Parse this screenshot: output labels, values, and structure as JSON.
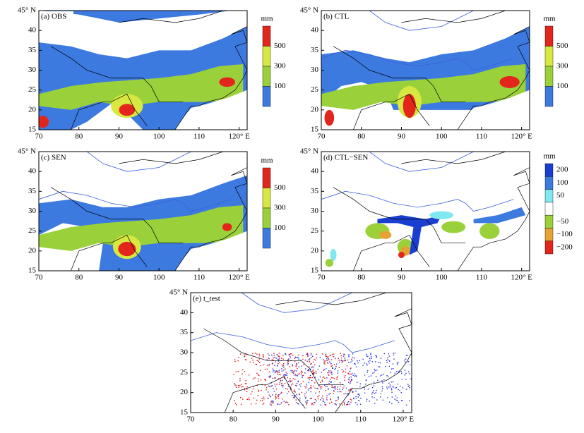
{
  "axes": {
    "xlim": [
      70,
      122
    ],
    "ylim": [
      15,
      45
    ],
    "xticks": [
      70,
      80,
      90,
      100,
      110,
      {
        "value": 120,
        "label": "120° E"
      }
    ],
    "yticks": [
      15,
      20,
      25,
      30,
      35,
      40,
      {
        "value": 45,
        "label": "45° N"
      }
    ]
  },
  "panels": [
    {
      "label": "(a) OBS",
      "colorbar": {
        "unit": "mm",
        "ticks": [
          100,
          300,
          500
        ]
      }
    },
    {
      "label": "(b) CTL",
      "colorbar": {
        "unit": "mm",
        "ticks": [
          100,
          300,
          500
        ]
      }
    },
    {
      "label": "(c) SEN",
      "colorbar": {
        "unit": "mm",
        "ticks": [
          100,
          300,
          500
        ]
      }
    },
    {
      "label": "(d) CTL−SEN",
      "colorbar": {
        "unit": "mm",
        "ticks": [
          200,
          100,
          50,
          {
            "value": -50,
            "label": "−50"
          },
          {
            "value": -100,
            "label": "−100"
          },
          {
            "value": -200,
            "label": "−200"
          }
        ]
      }
    },
    {
      "label": "(e) t_test"
    }
  ]
}
